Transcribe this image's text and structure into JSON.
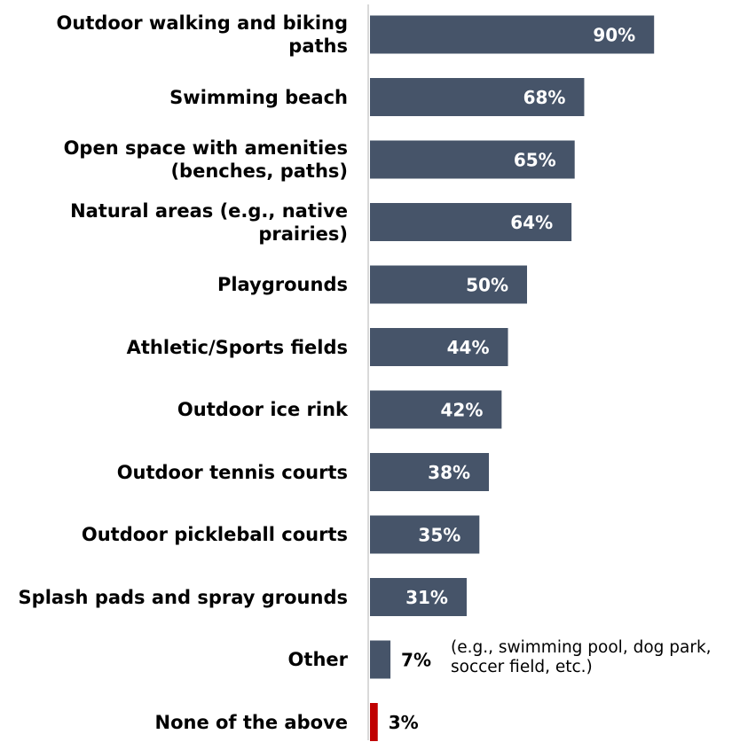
{
  "chart_data": {
    "type": "bar",
    "orientation": "horizontal",
    "categories": [
      "Outdoor walking and biking paths",
      "Swimming beach",
      "Open space with amenities (benches, paths)",
      "Natural areas (e.g., native prairies)",
      "Playgrounds",
      "Athletic/Sports fields",
      "Outdoor ice rink",
      "Outdoor tennis courts",
      "Outdoor pickleball courts",
      "Splash pads and spray grounds",
      "Other",
      "None of the above"
    ],
    "values": [
      90,
      68,
      65,
      64,
      50,
      44,
      42,
      38,
      35,
      31,
      7,
      3
    ],
    "value_labels": [
      "90%",
      "68%",
      "65%",
      "64%",
      "50%",
      "44%",
      "42%",
      "38%",
      "35%",
      "31%",
      "7%",
      "3%"
    ],
    "bar_colors": [
      "#465469",
      "#465469",
      "#465469",
      "#465469",
      "#465469",
      "#465469",
      "#465469",
      "#465469",
      "#465469",
      "#465469",
      "#465469",
      "#c00000"
    ],
    "xlim": [
      0,
      100
    ],
    "title": "",
    "xlabel": "",
    "ylabel": "",
    "grid": false,
    "legend": "none",
    "annotation": "(e.g., swimming pool, dog park, soccer field, etc.)"
  }
}
